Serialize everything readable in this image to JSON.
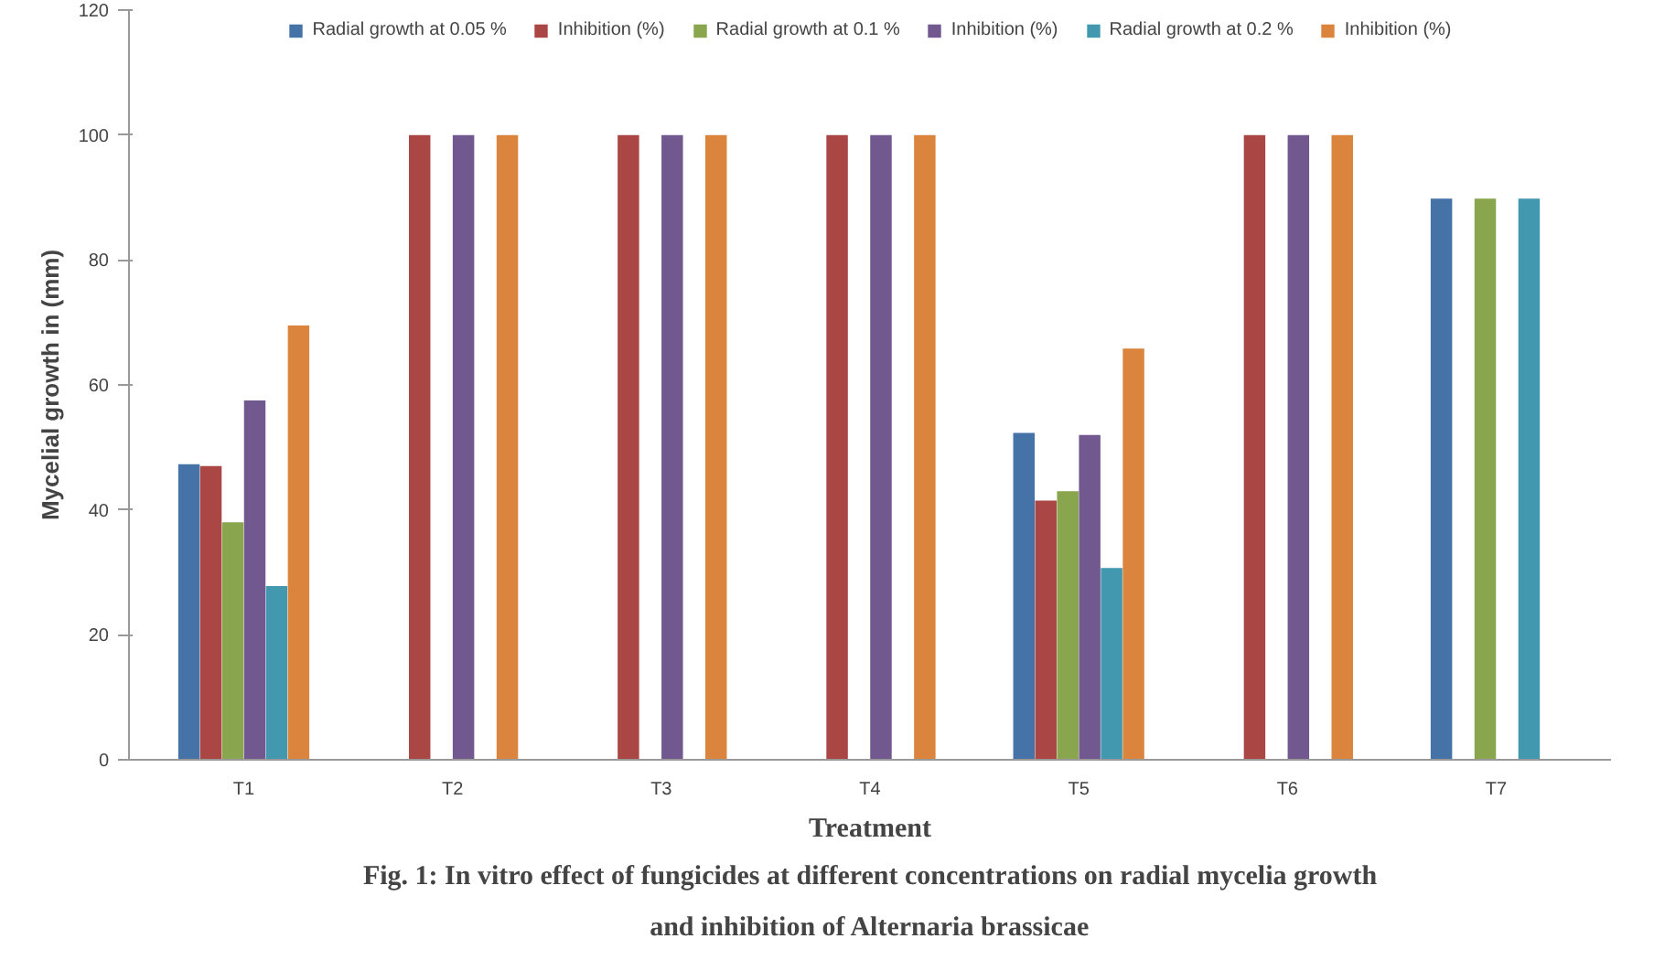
{
  "chart_data": {
    "type": "bar",
    "xlabel": "Treatment",
    "ylabel": "Mycelial growth in (mm)",
    "categories": [
      "T1",
      "T2",
      "T3",
      "T4",
      "T5",
      "T6",
      "T7"
    ],
    "series": [
      {
        "name": "Radial growth at 0.05 %",
        "color": "#4572a7",
        "values": [
          47.3,
          0,
          0,
          0,
          52.3,
          0,
          89.8
        ]
      },
      {
        "name": "Inhibition (%)",
        "color": "#aa4643",
        "values": [
          47,
          100,
          100,
          100,
          41.5,
          100,
          0
        ]
      },
      {
        "name": "Radial growth at 0.1 %",
        "color": "#89a54e",
        "values": [
          38,
          0,
          0,
          0,
          43,
          0,
          89.8
        ]
      },
      {
        "name": "Inhibition (%)",
        "color": "#71588f",
        "values": [
          57.5,
          100,
          100,
          100,
          52,
          100,
          0
        ]
      },
      {
        "name": "Radial growth at 0.2 %",
        "color": "#4198af",
        "values": [
          27.8,
          0,
          0,
          0,
          30.7,
          0,
          89.8
        ]
      },
      {
        "name": "Inhibition (%)",
        "color": "#db843d",
        "values": [
          69.5,
          100,
          100,
          100,
          65.8,
          100,
          0
        ]
      }
    ],
    "ylim": [
      0,
      120
    ],
    "yticks": [
      0,
      20,
      40,
      60,
      80,
      100,
      120
    ],
    "grid": false,
    "legend": "top",
    "annotations": [
      "Fig. 1: In vitro effect of fungicides at different concentrations on radial mycelia growth",
      "and inhibition of Alternaria brassicae"
    ]
  }
}
